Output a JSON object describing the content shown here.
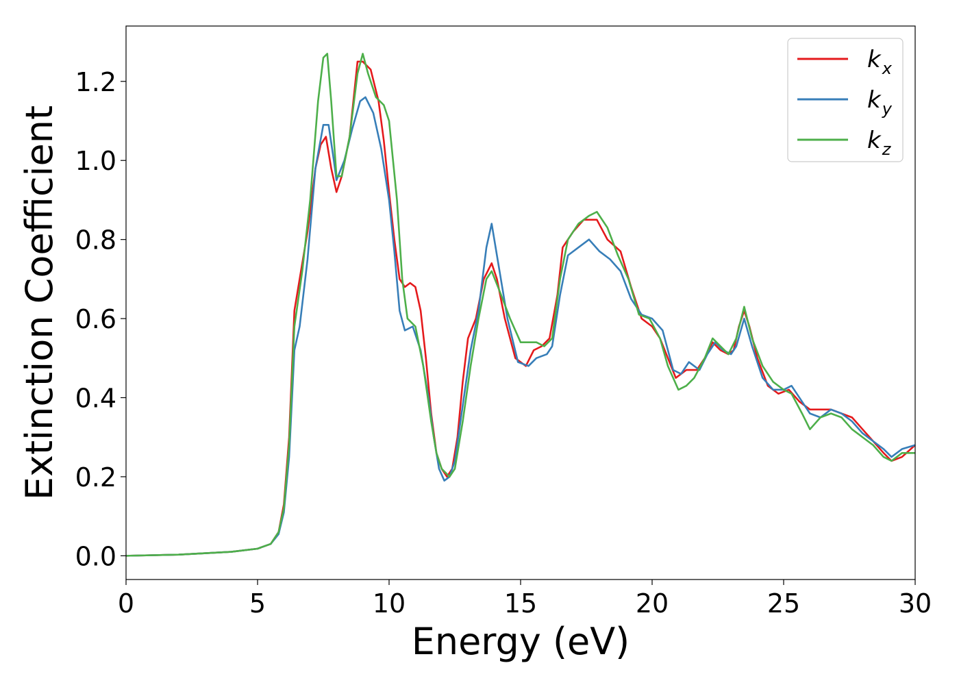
{
  "chart_data": {
    "type": "line",
    "title": "",
    "xlabel": "Energy (eV)",
    "ylabel": "Extinction Coefficient",
    "xlim": [
      0,
      30
    ],
    "ylim": [
      -0.06,
      1.34
    ],
    "x_ticks": [
      "0",
      "5",
      "10",
      "15",
      "20",
      "25",
      "30"
    ],
    "y_ticks": [
      "0.0",
      "0.2",
      "0.4",
      "0.6",
      "0.8",
      "1.0",
      "1.2"
    ],
    "grid": false,
    "legend_position": "top-right",
    "series": [
      {
        "name": "k_x",
        "label_main": "k",
        "label_sub": "x",
        "color": "#e41a1c",
        "points": [
          [
            0,
            0
          ],
          [
            2,
            0.003
          ],
          [
            4,
            0.01
          ],
          [
            5,
            0.018
          ],
          [
            5.5,
            0.03
          ],
          [
            5.8,
            0.06
          ],
          [
            6.0,
            0.13
          ],
          [
            6.2,
            0.3
          ],
          [
            6.4,
            0.62
          ],
          [
            6.6,
            0.7
          ],
          [
            6.9,
            0.82
          ],
          [
            7.2,
            0.98
          ],
          [
            7.4,
            1.04
          ],
          [
            7.6,
            1.06
          ],
          [
            7.8,
            0.98
          ],
          [
            8.0,
            0.92
          ],
          [
            8.2,
            0.96
          ],
          [
            8.5,
            1.06
          ],
          [
            8.8,
            1.25
          ],
          [
            9.0,
            1.25
          ],
          [
            9.3,
            1.23
          ],
          [
            9.6,
            1.15
          ],
          [
            9.8,
            1.05
          ],
          [
            10.0,
            0.92
          ],
          [
            10.2,
            0.8
          ],
          [
            10.4,
            0.7
          ],
          [
            10.6,
            0.68
          ],
          [
            10.8,
            0.69
          ],
          [
            11.0,
            0.68
          ],
          [
            11.2,
            0.62
          ],
          [
            11.4,
            0.5
          ],
          [
            11.6,
            0.36
          ],
          [
            11.8,
            0.26
          ],
          [
            12.0,
            0.22
          ],
          [
            12.2,
            0.2
          ],
          [
            12.4,
            0.22
          ],
          [
            12.6,
            0.3
          ],
          [
            12.8,
            0.44
          ],
          [
            13.0,
            0.55
          ],
          [
            13.3,
            0.6
          ],
          [
            13.6,
            0.7
          ],
          [
            13.9,
            0.74
          ],
          [
            14.1,
            0.7
          ],
          [
            14.4,
            0.6
          ],
          [
            14.8,
            0.5
          ],
          [
            15.2,
            0.48
          ],
          [
            15.5,
            0.52
          ],
          [
            15.8,
            0.53
          ],
          [
            16.1,
            0.55
          ],
          [
            16.4,
            0.66
          ],
          [
            16.6,
            0.78
          ],
          [
            17.0,
            0.82
          ],
          [
            17.4,
            0.85
          ],
          [
            17.9,
            0.85
          ],
          [
            18.3,
            0.8
          ],
          [
            18.8,
            0.77
          ],
          [
            19.2,
            0.68
          ],
          [
            19.6,
            0.6
          ],
          [
            20.0,
            0.58
          ],
          [
            20.3,
            0.55
          ],
          [
            20.6,
            0.5
          ],
          [
            20.9,
            0.45
          ],
          [
            21.3,
            0.47
          ],
          [
            21.7,
            0.47
          ],
          [
            22.0,
            0.5
          ],
          [
            22.3,
            0.54
          ],
          [
            22.6,
            0.52
          ],
          [
            22.9,
            0.51
          ],
          [
            23.1,
            0.52
          ],
          [
            23.3,
            0.58
          ],
          [
            23.5,
            0.62
          ],
          [
            23.7,
            0.58
          ],
          [
            24.0,
            0.5
          ],
          [
            24.4,
            0.43
          ],
          [
            24.8,
            0.41
          ],
          [
            25.2,
            0.42
          ],
          [
            25.6,
            0.39
          ],
          [
            26.0,
            0.37
          ],
          [
            26.4,
            0.37
          ],
          [
            26.8,
            0.37
          ],
          [
            27.2,
            0.36
          ],
          [
            27.6,
            0.35
          ],
          [
            28.0,
            0.32
          ],
          [
            28.4,
            0.29
          ],
          [
            28.8,
            0.26
          ],
          [
            29.1,
            0.24
          ],
          [
            29.5,
            0.25
          ],
          [
            30.0,
            0.28
          ]
        ]
      },
      {
        "name": "k_y",
        "label_main": "k",
        "label_sub": "y",
        "color": "#377eb8",
        "points": [
          [
            0,
            0
          ],
          [
            2,
            0.003
          ],
          [
            4,
            0.01
          ],
          [
            5,
            0.018
          ],
          [
            5.5,
            0.03
          ],
          [
            5.8,
            0.055
          ],
          [
            6.0,
            0.11
          ],
          [
            6.2,
            0.25
          ],
          [
            6.4,
            0.52
          ],
          [
            6.6,
            0.58
          ],
          [
            6.9,
            0.75
          ],
          [
            7.2,
            0.98
          ],
          [
            7.5,
            1.09
          ],
          [
            7.7,
            1.09
          ],
          [
            7.9,
            1.0
          ],
          [
            8.0,
            0.95
          ],
          [
            8.3,
            1.0
          ],
          [
            8.6,
            1.08
          ],
          [
            8.9,
            1.15
          ],
          [
            9.1,
            1.16
          ],
          [
            9.4,
            1.12
          ],
          [
            9.7,
            1.03
          ],
          [
            10.0,
            0.9
          ],
          [
            10.2,
            0.77
          ],
          [
            10.4,
            0.62
          ],
          [
            10.6,
            0.57
          ],
          [
            10.9,
            0.58
          ],
          [
            11.2,
            0.52
          ],
          [
            11.5,
            0.4
          ],
          [
            11.7,
            0.3
          ],
          [
            11.9,
            0.22
          ],
          [
            12.1,
            0.19
          ],
          [
            12.3,
            0.2
          ],
          [
            12.5,
            0.24
          ],
          [
            12.8,
            0.38
          ],
          [
            13.1,
            0.52
          ],
          [
            13.4,
            0.62
          ],
          [
            13.7,
            0.78
          ],
          [
            13.9,
            0.84
          ],
          [
            14.1,
            0.76
          ],
          [
            14.5,
            0.6
          ],
          [
            14.9,
            0.49
          ],
          [
            15.3,
            0.48
          ],
          [
            15.6,
            0.5
          ],
          [
            16.0,
            0.51
          ],
          [
            16.2,
            0.53
          ],
          [
            16.5,
            0.66
          ],
          [
            16.8,
            0.76
          ],
          [
            17.2,
            0.78
          ],
          [
            17.6,
            0.8
          ],
          [
            18.0,
            0.77
          ],
          [
            18.4,
            0.75
          ],
          [
            18.8,
            0.72
          ],
          [
            19.2,
            0.65
          ],
          [
            19.6,
            0.61
          ],
          [
            20.0,
            0.6
          ],
          [
            20.4,
            0.57
          ],
          [
            20.8,
            0.47
          ],
          [
            21.1,
            0.46
          ],
          [
            21.4,
            0.49
          ],
          [
            21.8,
            0.47
          ],
          [
            22.1,
            0.51
          ],
          [
            22.4,
            0.54
          ],
          [
            22.7,
            0.52
          ],
          [
            23.0,
            0.51
          ],
          [
            23.2,
            0.53
          ],
          [
            23.5,
            0.6
          ],
          [
            23.8,
            0.53
          ],
          [
            24.2,
            0.45
          ],
          [
            24.6,
            0.42
          ],
          [
            25.0,
            0.42
          ],
          [
            25.3,
            0.43
          ],
          [
            25.7,
            0.39
          ],
          [
            26.0,
            0.36
          ],
          [
            26.4,
            0.35
          ],
          [
            26.8,
            0.37
          ],
          [
            27.2,
            0.36
          ],
          [
            27.6,
            0.34
          ],
          [
            28.0,
            0.31
          ],
          [
            28.4,
            0.29
          ],
          [
            28.8,
            0.27
          ],
          [
            29.1,
            0.25
          ],
          [
            29.5,
            0.27
          ],
          [
            30.0,
            0.28
          ]
        ]
      },
      {
        "name": "k_z",
        "label_main": "k",
        "label_sub": "z",
        "color": "#4daf4a",
        "points": [
          [
            0,
            0
          ],
          [
            2,
            0.003
          ],
          [
            4,
            0.01
          ],
          [
            5,
            0.018
          ],
          [
            5.5,
            0.03
          ],
          [
            5.8,
            0.06
          ],
          [
            6.0,
            0.12
          ],
          [
            6.2,
            0.28
          ],
          [
            6.4,
            0.58
          ],
          [
            6.7,
            0.72
          ],
          [
            7.0,
            0.9
          ],
          [
            7.3,
            1.15
          ],
          [
            7.5,
            1.26
          ],
          [
            7.65,
            1.27
          ],
          [
            7.8,
            1.15
          ],
          [
            8.0,
            0.96
          ],
          [
            8.2,
            0.96
          ],
          [
            8.5,
            1.06
          ],
          [
            8.8,
            1.22
          ],
          [
            9.0,
            1.27
          ],
          [
            9.2,
            1.22
          ],
          [
            9.5,
            1.16
          ],
          [
            9.8,
            1.14
          ],
          [
            10.0,
            1.1
          ],
          [
            10.3,
            0.9
          ],
          [
            10.5,
            0.7
          ],
          [
            10.7,
            0.6
          ],
          [
            11.0,
            0.58
          ],
          [
            11.3,
            0.48
          ],
          [
            11.6,
            0.34
          ],
          [
            11.8,
            0.26
          ],
          [
            12.0,
            0.22
          ],
          [
            12.3,
            0.2
          ],
          [
            12.5,
            0.22
          ],
          [
            12.8,
            0.34
          ],
          [
            13.1,
            0.48
          ],
          [
            13.4,
            0.6
          ],
          [
            13.7,
            0.7
          ],
          [
            13.9,
            0.72
          ],
          [
            14.2,
            0.67
          ],
          [
            14.6,
            0.6
          ],
          [
            15.0,
            0.54
          ],
          [
            15.3,
            0.54
          ],
          [
            15.6,
            0.54
          ],
          [
            15.9,
            0.53
          ],
          [
            16.2,
            0.55
          ],
          [
            16.5,
            0.7
          ],
          [
            16.8,
            0.8
          ],
          [
            17.2,
            0.84
          ],
          [
            17.6,
            0.86
          ],
          [
            17.9,
            0.87
          ],
          [
            18.3,
            0.83
          ],
          [
            18.7,
            0.76
          ],
          [
            19.1,
            0.7
          ],
          [
            19.5,
            0.61
          ],
          [
            19.9,
            0.6
          ],
          [
            20.3,
            0.55
          ],
          [
            20.6,
            0.48
          ],
          [
            21.0,
            0.42
          ],
          [
            21.3,
            0.43
          ],
          [
            21.6,
            0.45
          ],
          [
            22.0,
            0.5
          ],
          [
            22.3,
            0.55
          ],
          [
            22.6,
            0.53
          ],
          [
            22.9,
            0.51
          ],
          [
            23.2,
            0.55
          ],
          [
            23.5,
            0.63
          ],
          [
            23.8,
            0.55
          ],
          [
            24.2,
            0.48
          ],
          [
            24.6,
            0.44
          ],
          [
            25.0,
            0.42
          ],
          [
            25.3,
            0.41
          ],
          [
            25.7,
            0.36
          ],
          [
            26.0,
            0.32
          ],
          [
            26.4,
            0.35
          ],
          [
            26.8,
            0.36
          ],
          [
            27.2,
            0.35
          ],
          [
            27.6,
            0.32
          ],
          [
            28.0,
            0.3
          ],
          [
            28.4,
            0.28
          ],
          [
            28.8,
            0.25
          ],
          [
            29.1,
            0.24
          ],
          [
            29.5,
            0.26
          ],
          [
            30.0,
            0.26
          ]
        ]
      }
    ]
  }
}
